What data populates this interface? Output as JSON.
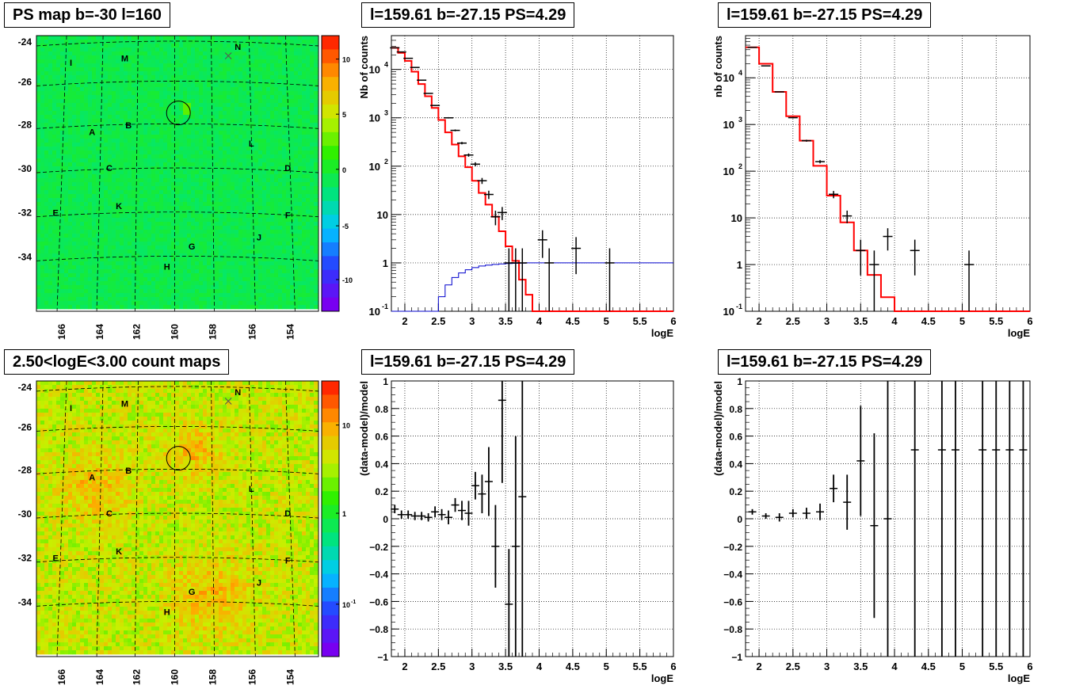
{
  "titles": {
    "map_top": "PS map b=-30 l=160",
    "spec_top_left": "l=159.61 b=-27.15 PS=4.29",
    "spec_top_right": "l=159.61 b=-27.15 PS=4.29",
    "map_bottom": "2.50<logE<3.00 count maps",
    "res_left": "l=159.61 b=-27.15 PS=4.29",
    "res_right": "l=159.61 b=-27.15 PS=4.29"
  },
  "chart_data": [
    {
      "type": "heatmap",
      "id": "ps_map",
      "title": "PS map b=-30 l=160",
      "x_ticks": [
        "166",
        "164",
        "162",
        "160",
        "158",
        "156",
        "154"
      ],
      "y_ticks": [
        "-24",
        "-26",
        "-28",
        "-30",
        "-32",
        "-34"
      ],
      "colorbar_ticks": [
        "10",
        "5",
        "0",
        "-5",
        "-10"
      ],
      "source_labels": [
        {
          "label": "I",
          "l": 165.2,
          "b": -24.9
        },
        {
          "label": "M",
          "l": 162.4,
          "b": -24.7
        },
        {
          "label": "N",
          "l": 156.5,
          "b": -24.2
        },
        {
          "label": "B",
          "l": 162.2,
          "b": -27.7
        },
        {
          "label": "A",
          "l": 164.1,
          "b": -28.0
        },
        {
          "label": "L",
          "l": 155.8,
          "b": -28.5
        },
        {
          "label": "C",
          "l": 163.2,
          "b": -29.6
        },
        {
          "label": "D",
          "l": 153.9,
          "b": -29.6
        },
        {
          "label": "E",
          "l": 166.0,
          "b": -31.6
        },
        {
          "label": "K",
          "l": 162.7,
          "b": -31.3
        },
        {
          "label": "F",
          "l": 153.9,
          "b": -31.7
        },
        {
          "label": "J",
          "l": 155.4,
          "b": -32.7
        },
        {
          "label": "G",
          "l": 158.9,
          "b": -33.1
        },
        {
          "label": "H",
          "l": 160.2,
          "b": -34.0
        }
      ],
      "circle": {
        "l": 159.6,
        "b": -27.15
      }
    },
    {
      "type": "line",
      "id": "spec_left",
      "ylabel": "Nb of counts",
      "xlabel": "logE",
      "xlim": [
        1.8,
        6
      ],
      "ylim_log": [
        0.1,
        50000
      ],
      "x_ticks": [
        "2",
        "2.5",
        "3",
        "3.5",
        "4",
        "4.5",
        "5",
        "5.5",
        "6"
      ],
      "y_ticks": [
        "10^{-1}",
        "1",
        "10",
        "10^{2}",
        "10^{3}",
        "10^{4}"
      ],
      "model_red": [
        28000,
        22000,
        15000,
        9000,
        5000,
        2800,
        1600,
        900,
        500,
        280,
        160,
        95,
        50,
        28,
        16,
        9,
        4.5,
        2.2,
        1.1,
        0.45,
        0.22,
        0.1,
        0.1,
        0.1,
        0.1,
        0.1,
        0.1,
        0.1,
        0.1,
        0.1,
        0.1,
        0.1,
        0.1,
        0.1,
        0.1,
        0.1,
        0.1,
        0.1,
        0.1,
        0.1,
        0.1,
        0.1
      ],
      "model_blue": [
        0.05,
        0.05,
        0.05,
        0.05,
        0.05,
        0.06,
        0.1,
        0.2,
        0.35,
        0.5,
        0.62,
        0.72,
        0.8,
        0.86,
        0.9,
        0.93,
        0.95,
        0.97,
        0.98,
        0.99,
        1,
        1,
        1,
        1,
        1,
        1,
        1,
        1,
        1,
        1,
        1,
        1,
        1,
        1,
        1,
        1,
        1,
        1,
        1,
        1,
        1,
        1
      ],
      "data_points": [
        {
          "x": 1.85,
          "y": 28000
        },
        {
          "x": 1.95,
          "y": 23000
        },
        {
          "x": 2.05,
          "y": 17000
        },
        {
          "x": 2.15,
          "y": 11000
        },
        {
          "x": 2.25,
          "y": 6000
        },
        {
          "x": 2.35,
          "y": 3200
        },
        {
          "x": 2.45,
          "y": 1800
        },
        {
          "x": 2.65,
          "y": 1000
        },
        {
          "x": 2.75,
          "y": 550
        },
        {
          "x": 2.85,
          "y": 300
        },
        {
          "x": 2.95,
          "y": 170
        },
        {
          "x": 3.05,
          "y": 110
        },
        {
          "x": 3.15,
          "y": 50
        },
        {
          "x": 3.25,
          "y": 26
        },
        {
          "x": 3.35,
          "y": 9
        },
        {
          "x": 3.45,
          "y": 11
        },
        {
          "x": 3.55,
          "y": 1
        },
        {
          "x": 3.65,
          "y": 1
        },
        {
          "x": 3.75,
          "y": 1
        },
        {
          "x": 4.05,
          "y": 3
        },
        {
          "x": 4.15,
          "y": 1
        },
        {
          "x": 4.55,
          "y": 2
        },
        {
          "x": 5.05,
          "y": 1
        }
      ]
    },
    {
      "type": "line",
      "id": "spec_right",
      "ylabel": "nb of counts",
      "xlabel": "logE",
      "xlim": [
        1.8,
        6
      ],
      "ylim_log": [
        0.1,
        80000
      ],
      "x_ticks": [
        "2",
        "2.5",
        "3",
        "3.5",
        "4",
        "4.5",
        "5",
        "5.5",
        "6"
      ],
      "y_ticks": [
        "10^{-1}",
        "1",
        "10",
        "10^{2}",
        "10^{3}",
        "10^{4}"
      ],
      "model_red": [
        45000,
        20000,
        5000,
        1500,
        450,
        130,
        30,
        8,
        2,
        0.6,
        0.2,
        0.1,
        0.1,
        0.1,
        0.1,
        0.1,
        0.1,
        0.1,
        0.1,
        0.1,
        0.1
      ],
      "data_points": [
        {
          "x": 1.9,
          "y": 45000
        },
        {
          "x": 2.1,
          "y": 18000
        },
        {
          "x": 2.3,
          "y": 5000
        },
        {
          "x": 2.5,
          "y": 1400
        },
        {
          "x": 2.7,
          "y": 450
        },
        {
          "x": 2.9,
          "y": 160
        },
        {
          "x": 3.1,
          "y": 32
        },
        {
          "x": 3.3,
          "y": 11
        },
        {
          "x": 3.5,
          "y": 2
        },
        {
          "x": 3.7,
          "y": 1.0
        },
        {
          "x": 3.9,
          "y": 4
        },
        {
          "x": 4.3,
          "y": 2
        },
        {
          "x": 5.1,
          "y": 1
        }
      ]
    },
    {
      "type": "heatmap",
      "id": "count_map",
      "title": "2.50<logE<3.00 count maps",
      "x_ticks": [
        "166",
        "164",
        "162",
        "160",
        "158",
        "156",
        "154"
      ],
      "y_ticks": [
        "-24",
        "-26",
        "-28",
        "-30",
        "-32",
        "-34"
      ],
      "colorbar_ticks": [
        "10",
        "1",
        "10^{-1}"
      ]
    },
    {
      "type": "scatter",
      "id": "res_left",
      "ylabel": "(data-model)/model",
      "xlabel": "logE",
      "xlim": [
        1.8,
        6
      ],
      "ylim": [
        -1,
        1
      ],
      "x_ticks": [
        "2",
        "2.5",
        "3",
        "3.5",
        "4",
        "4.5",
        "5",
        "5.5",
        "6"
      ],
      "y_ticks": [
        "1",
        "0.8",
        "0.6",
        "0.4",
        "0.2",
        "0",
        "−0.2",
        "−0.4",
        "−0.6",
        "−0.8",
        "−1"
      ],
      "points": [
        {
          "x": 1.85,
          "y": 0.07,
          "e": 0.03
        },
        {
          "x": 1.95,
          "y": 0.03,
          "e": 0.03
        },
        {
          "x": 2.05,
          "y": 0.03,
          "e": 0.03
        },
        {
          "x": 2.15,
          "y": 0.02,
          "e": 0.03
        },
        {
          "x": 2.25,
          "y": 0.02,
          "e": 0.03
        },
        {
          "x": 2.35,
          "y": 0.01,
          "e": 0.03
        },
        {
          "x": 2.45,
          "y": 0.05,
          "e": 0.04
        },
        {
          "x": 2.55,
          "y": 0.03,
          "e": 0.04
        },
        {
          "x": 2.65,
          "y": 0.01,
          "e": 0.05
        },
        {
          "x": 2.75,
          "y": 0.1,
          "e": 0.05
        },
        {
          "x": 2.85,
          "y": 0.06,
          "e": 0.07
        },
        {
          "x": 2.95,
          "y": 0.04,
          "e": 0.09
        },
        {
          "x": 3.05,
          "y": 0.24,
          "e": 0.1
        },
        {
          "x": 3.15,
          "y": 0.18,
          "e": 0.14
        },
        {
          "x": 3.25,
          "y": 0.27,
          "e": 0.25
        },
        {
          "x": 3.35,
          "y": -0.2,
          "e": 0.3
        },
        {
          "x": 3.45,
          "y": 0.86,
          "e": 0.6
        },
        {
          "x": 3.55,
          "y": -0.62,
          "e": 0.4
        },
        {
          "x": 3.65,
          "y": -0.2,
          "e": 0.8
        },
        {
          "x": 3.75,
          "y": 0.16,
          "e": 1.2
        }
      ]
    },
    {
      "type": "scatter",
      "id": "res_right",
      "ylabel": "(data-model)/model",
      "xlabel": "logE",
      "xlim": [
        1.8,
        6
      ],
      "ylim": [
        -1,
        1
      ],
      "x_ticks": [
        "2",
        "2.5",
        "3",
        "3.5",
        "4",
        "4.5",
        "5",
        "5.5",
        "6"
      ],
      "y_ticks": [
        "1",
        "0.8",
        "0.6",
        "0.4",
        "0.2",
        "0",
        "−0.2",
        "−0.4",
        "−0.6",
        "−0.8",
        "−1"
      ],
      "points": [
        {
          "x": 1.9,
          "y": 0.05,
          "e": 0.02
        },
        {
          "x": 2.1,
          "y": 0.02,
          "e": 0.02
        },
        {
          "x": 2.3,
          "y": 0.01,
          "e": 0.03
        },
        {
          "x": 2.5,
          "y": 0.04,
          "e": 0.03
        },
        {
          "x": 2.7,
          "y": 0.04,
          "e": 0.04
        },
        {
          "x": 2.9,
          "y": 0.05,
          "e": 0.06
        },
        {
          "x": 3.1,
          "y": 0.22,
          "e": 0.1
        },
        {
          "x": 3.3,
          "y": 0.12,
          "e": 0.2
        },
        {
          "x": 3.5,
          "y": 0.42,
          "e": 0.4
        },
        {
          "x": 3.7,
          "y": -0.05,
          "e": 0.67
        },
        {
          "x": 3.9,
          "y": 0,
          "e": 1.2
        },
        {
          "x": 4.3,
          "y": 0.5,
          "e": 2
        },
        {
          "x": 4.7,
          "y": 0.5,
          "e": 2
        },
        {
          "x": 4.9,
          "y": 0.5,
          "e": 2
        },
        {
          "x": 5.3,
          "y": 0.5,
          "e": 2
        },
        {
          "x": 5.5,
          "y": 0.5,
          "e": 2
        },
        {
          "x": 5.7,
          "y": 0.5,
          "e": 2
        },
        {
          "x": 5.9,
          "y": 0.5,
          "e": 2
        }
      ]
    }
  ]
}
